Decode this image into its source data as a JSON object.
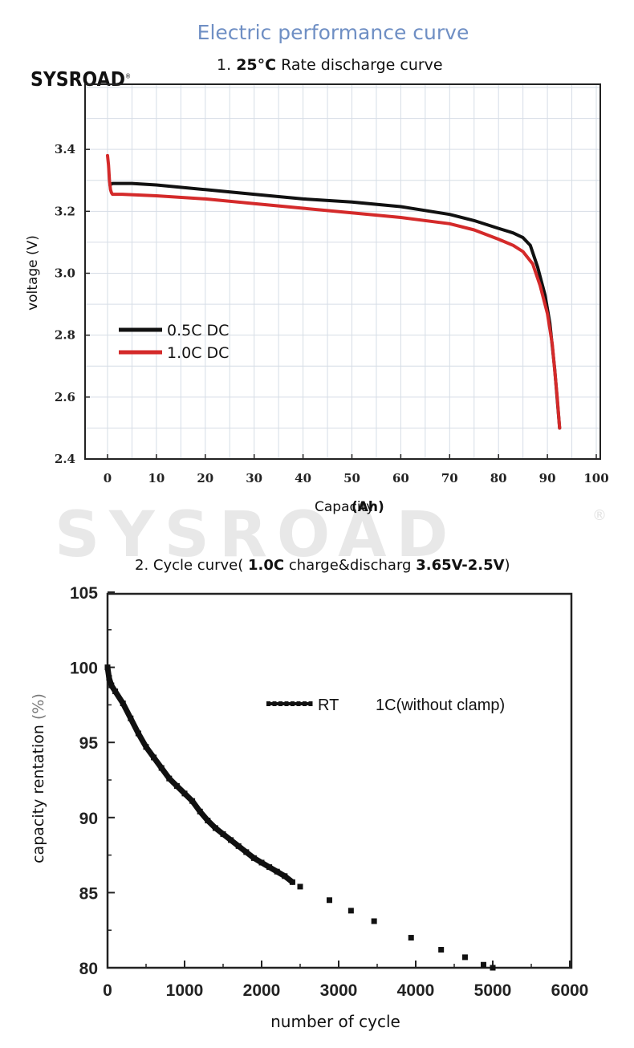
{
  "header": {
    "title": "Electric performance curve",
    "logo_text": "SYSROAD",
    "logo_mark": "®",
    "watermark_text": "SYSROAD",
    "watermark_mark": "®"
  },
  "colors": {
    "title": "#6f8fc4",
    "series_black": "#111111",
    "series_red": "#d42a2a"
  },
  "chart_data": [
    {
      "type": "line",
      "title_prefix": "1.",
      "title_temp": "25°C",
      "title_rest": "Rate discharge curve",
      "xlabel": "Capacity",
      "xlabel_unit": "(Ah)",
      "ylabel": "voltage (V)",
      "xlim": [
        0,
        100
      ],
      "ylim": [
        2.4,
        3.6
      ],
      "xticks": [
        "0",
        "10",
        "20",
        "30",
        "40",
        "50",
        "60",
        "70",
        "80",
        "90",
        "100"
      ],
      "yticks": [
        "2.4",
        "2.6",
        "2.8",
        "3.0",
        "3.2",
        "3.4"
      ],
      "grid": true,
      "legend": "left-middle",
      "series": [
        {
          "name": "0.5C DC",
          "color": "#111111",
          "x": [
            0.5,
            1,
            5,
            10,
            20,
            30,
            40,
            50,
            60,
            70,
            75,
            80,
            83,
            85,
            86.5,
            88,
            89.5,
            90.5,
            91.5,
            92.5
          ],
          "y": [
            3.285,
            3.29,
            3.29,
            3.285,
            3.27,
            3.255,
            3.24,
            3.23,
            3.215,
            3.19,
            3.17,
            3.145,
            3.13,
            3.115,
            3.09,
            3.02,
            2.93,
            2.84,
            2.69,
            2.5
          ]
        },
        {
          "name": "1.0C DC",
          "color": "#d42a2a",
          "x": [
            0,
            0.2,
            0.4,
            0.6,
            0.8,
            1,
            3,
            10,
            20,
            30,
            40,
            50,
            60,
            70,
            75,
            80,
            83,
            85,
            87,
            88.5,
            90,
            91,
            92,
            92.5
          ],
          "y": [
            3.38,
            3.35,
            3.3,
            3.27,
            3.26,
            3.255,
            3.255,
            3.25,
            3.24,
            3.225,
            3.21,
            3.195,
            3.18,
            3.16,
            3.14,
            3.11,
            3.09,
            3.07,
            3.03,
            2.96,
            2.87,
            2.77,
            2.6,
            2.5
          ]
        }
      ]
    },
    {
      "type": "scatter",
      "title_prefix": "2. Cycle curve",
      "title_open": "(",
      "title_rate": "1.0C",
      "title_mid": "charge&discharg",
      "title_range": "3.65V-2.5V",
      "title_close": ")",
      "xlabel": "number of cycle",
      "ylabel": "capacity rentation",
      "ylabel_unit": "(%)",
      "xlim": [
        0,
        6000
      ],
      "ylim": [
        80,
        105
      ],
      "xticks": [
        "0",
        "1000",
        "2000",
        "3000",
        "4000",
        "5000",
        "6000"
      ],
      "yticks": [
        "80",
        "85",
        "90",
        "95",
        "100",
        "105"
      ],
      "grid": false,
      "legend": "top-right",
      "series": [
        {
          "name": "RT",
          "legend_note": "1C(without clamp)",
          "color": "#111111",
          "dense_x": [
            0,
            20,
            50,
            100,
            200,
            300,
            400,
            500,
            600,
            700,
            800,
            900,
            1000,
            1100,
            1200,
            1300,
            1400,
            1500,
            1600,
            1700,
            1800,
            1900,
            2000,
            2100,
            2200,
            2300,
            2400
          ],
          "dense_y": [
            100,
            99.3,
            98.8,
            98.4,
            97.6,
            96.6,
            95.6,
            94.7,
            94.0,
            93.3,
            92.6,
            92.1,
            91.6,
            91.1,
            90.4,
            89.8,
            89.3,
            88.9,
            88.5,
            88.1,
            87.7,
            87.3,
            87.0,
            86.7,
            86.4,
            86.1,
            85.7
          ],
          "x": [
            2500,
            2880,
            3160,
            3460,
            3940,
            4330,
            4640,
            4880,
            5000
          ],
          "y": [
            85.4,
            84.5,
            83.8,
            83.1,
            82.0,
            81.2,
            80.7,
            80.2,
            80.0
          ]
        }
      ]
    }
  ]
}
